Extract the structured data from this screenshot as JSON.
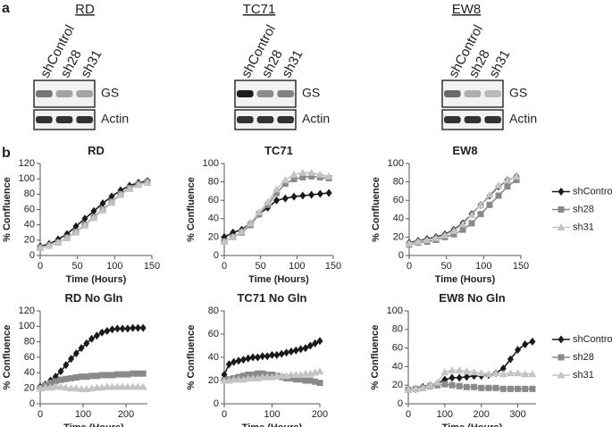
{
  "panel_labels": [
    "a",
    "b"
  ],
  "blots": [
    {
      "title": "RD",
      "lanes": [
        "shControl",
        "sh28",
        "sh31"
      ],
      "rows": [
        "GS",
        "Actin"
      ]
    },
    {
      "title": "TC71",
      "lanes": [
        "shControl",
        "sh28",
        "sh31"
      ],
      "rows": [
        "GS",
        "Actin"
      ]
    },
    {
      "title": "EW8",
      "lanes": [
        "shControl",
        "sh28",
        "sh31"
      ],
      "rows": [
        "GS",
        "Actin"
      ]
    }
  ],
  "chart_data": [
    {
      "type": "line",
      "title": "RD",
      "x_label": "Time (Hours)",
      "y_label": "% Confluence",
      "x": [
        0,
        12,
        24,
        36,
        48,
        60,
        72,
        84,
        96,
        108,
        120,
        132,
        144
      ],
      "xlim": [
        0,
        150
      ],
      "xticks": [
        0,
        50,
        100,
        150
      ],
      "ylim": [
        0,
        120
      ],
      "yticks": [
        0,
        20,
        40,
        60,
        80,
        100,
        120
      ],
      "legend": false,
      "series": [
        {
          "color": "#1a1a1a",
          "marker": "diamond",
          "values": [
            12,
            15,
            21,
            28,
            38,
            48,
            58,
            68,
            77,
            85,
            91,
            95,
            97
          ]
        },
        {
          "color": "#8a8a8a",
          "marker": "square",
          "values": [
            10,
            13,
            17,
            23,
            31,
            40,
            50,
            60,
            70,
            80,
            88,
            93,
            96
          ]
        },
        {
          "color": "#c4c4c4",
          "marker": "triangle",
          "values": [
            10,
            13,
            17,
            23,
            30,
            39,
            49,
            59,
            69,
            79,
            87,
            92,
            95
          ]
        }
      ]
    },
    {
      "type": "line",
      "title": "TC71",
      "x_label": "Time (Hours)",
      "y_label": "% Confluence",
      "x": [
        0,
        12,
        24,
        36,
        48,
        60,
        72,
        84,
        96,
        108,
        120,
        132,
        144
      ],
      "xlim": [
        0,
        150
      ],
      "xticks": [
        0,
        50,
        100,
        150
      ],
      "ylim": [
        0,
        100
      ],
      "yticks": [
        0,
        20,
        40,
        60,
        80,
        100
      ],
      "legend": false,
      "series": [
        {
          "color": "#1a1a1a",
          "marker": "diamond",
          "values": [
            20,
            25,
            28,
            35,
            45,
            52,
            60,
            62,
            64,
            65,
            66,
            67,
            68
          ]
        },
        {
          "color": "#8a8a8a",
          "marker": "square",
          "values": [
            15,
            20,
            25,
            33,
            45,
            55,
            68,
            78,
            83,
            85,
            86,
            85,
            84
          ]
        },
        {
          "color": "#c4c4c4",
          "marker": "triangle",
          "values": [
            15,
            20,
            26,
            35,
            47,
            58,
            72,
            82,
            88,
            90,
            90,
            88,
            86
          ]
        }
      ]
    },
    {
      "type": "line",
      "title": "EW8",
      "x_label": "Time (Hours)",
      "y_label": "% Confluence",
      "x": [
        0,
        12,
        24,
        36,
        48,
        60,
        72,
        84,
        96,
        108,
        120,
        132,
        144
      ],
      "xlim": [
        0,
        150
      ],
      "xticks": [
        0,
        50,
        100,
        150
      ],
      "ylim": [
        0,
        100
      ],
      "yticks": [
        0,
        20,
        40,
        60,
        80,
        100
      ],
      "legend": true,
      "series": [
        {
          "name": "shControl",
          "color": "#1a1a1a",
          "marker": "diamond",
          "values": [
            14,
            16,
            18,
            20,
            23,
            28,
            35,
            45,
            55,
            65,
            75,
            82,
            86
          ]
        },
        {
          "name": "sh28",
          "color": "#8a8a8a",
          "marker": "square",
          "values": [
            12,
            14,
            15,
            17,
            20,
            23,
            28,
            35,
            45,
            55,
            65,
            75,
            82
          ]
        },
        {
          "name": "sh31",
          "color": "#c4c4c4",
          "marker": "triangle",
          "values": [
            13,
            15,
            17,
            19,
            22,
            27,
            34,
            44,
            55,
            66,
            76,
            82,
            86
          ]
        }
      ]
    },
    {
      "type": "line",
      "title": "RD No Gln",
      "x_label": "Time (Hours)",
      "y_label": "% Confluence",
      "x": [
        0,
        12,
        24,
        36,
        48,
        60,
        72,
        84,
        96,
        108,
        120,
        132,
        144,
        156,
        168,
        180,
        192,
        204,
        216,
        228,
        240
      ],
      "xlim": [
        0,
        250
      ],
      "xticks": [
        0,
        100,
        200
      ],
      "ylim": [
        0,
        120
      ],
      "yticks": [
        0,
        20,
        40,
        60,
        80,
        100,
        120
      ],
      "legend": false,
      "series": [
        {
          "color": "#1a1a1a",
          "marker": "diamond",
          "values": [
            22,
            25,
            30,
            35,
            42,
            50,
            58,
            65,
            72,
            78,
            84,
            88,
            92,
            94,
            96,
            97,
            97,
            97,
            98,
            98,
            98
          ]
        },
        {
          "color": "#8a8a8a",
          "marker": "square",
          "values": [
            20,
            24,
            27,
            29,
            31,
            32,
            33,
            34,
            35,
            35,
            36,
            36,
            37,
            37,
            37,
            38,
            38,
            38,
            39,
            39,
            39
          ]
        },
        {
          "color": "#c4c4c4",
          "marker": "triangle",
          "values": [
            20,
            21,
            21,
            22,
            22,
            21,
            20,
            20,
            19,
            19,
            20,
            21,
            21,
            22,
            22,
            22,
            22,
            22,
            22,
            22,
            22
          ]
        }
      ]
    },
    {
      "type": "line",
      "title": "TC71 No Gln",
      "x_label": "Time (Hours)",
      "y_label": "% Confluence",
      "x": [
        0,
        10,
        20,
        30,
        40,
        50,
        60,
        70,
        80,
        90,
        100,
        110,
        120,
        130,
        140,
        150,
        160,
        170,
        180,
        190,
        200
      ],
      "xlim": [
        0,
        200
      ],
      "xticks": [
        0,
        100,
        200
      ],
      "ylim": [
        0,
        80
      ],
      "yticks": [
        0,
        20,
        40,
        60,
        80
      ],
      "legend": false,
      "series": [
        {
          "color": "#1a1a1a",
          "marker": "diamond",
          "values": [
            25,
            34,
            36,
            37,
            38,
            39,
            40,
            40,
            41,
            41,
            42,
            42,
            43,
            44,
            45,
            46,
            47,
            48,
            50,
            52,
            54
          ]
        },
        {
          "color": "#8a8a8a",
          "marker": "square",
          "values": [
            20,
            21,
            22,
            23,
            24,
            25,
            25,
            26,
            26,
            25,
            25,
            24,
            23,
            22,
            22,
            21,
            21,
            20,
            20,
            19,
            18
          ]
        },
        {
          "color": "#c4c4c4",
          "marker": "triangle",
          "values": [
            20,
            20,
            21,
            21,
            21,
            22,
            22,
            22,
            23,
            23,
            23,
            24,
            24,
            24,
            25,
            25,
            25,
            26,
            26,
            27,
            28
          ]
        }
      ]
    },
    {
      "type": "line",
      "title": "EW8 No Gln",
      "x_label": "Time (Hours)",
      "y_label": "% Confluence",
      "x": [
        0,
        20,
        40,
        60,
        80,
        100,
        120,
        140,
        160,
        180,
        200,
        220,
        240,
        260,
        280,
        300,
        320,
        340
      ],
      "xlim": [
        0,
        350
      ],
      "xticks": [
        0,
        100,
        200,
        300
      ],
      "ylim": [
        0,
        100
      ],
      "yticks": [
        0,
        20,
        40,
        60,
        80,
        100
      ],
      "legend": true,
      "series": [
        {
          "name": "shControl",
          "color": "#1a1a1a",
          "marker": "diamond",
          "values": [
            15,
            16,
            18,
            20,
            22,
            26,
            28,
            28,
            29,
            30,
            30,
            31,
            33,
            38,
            48,
            58,
            64,
            67
          ]
        },
        {
          "name": "sh28",
          "color": "#8a8a8a",
          "marker": "square",
          "values": [
            15,
            16,
            17,
            19,
            20,
            21,
            20,
            19,
            18,
            18,
            17,
            17,
            17,
            16,
            16,
            16,
            16,
            16
          ]
        },
        {
          "name": "sh31",
          "color": "#c4c4c4",
          "marker": "triangle",
          "values": [
            15,
            16,
            17,
            20,
            23,
            34,
            36,
            36,
            35,
            34,
            33,
            32,
            33,
            32,
            33,
            33,
            32,
            32
          ]
        }
      ]
    }
  ]
}
